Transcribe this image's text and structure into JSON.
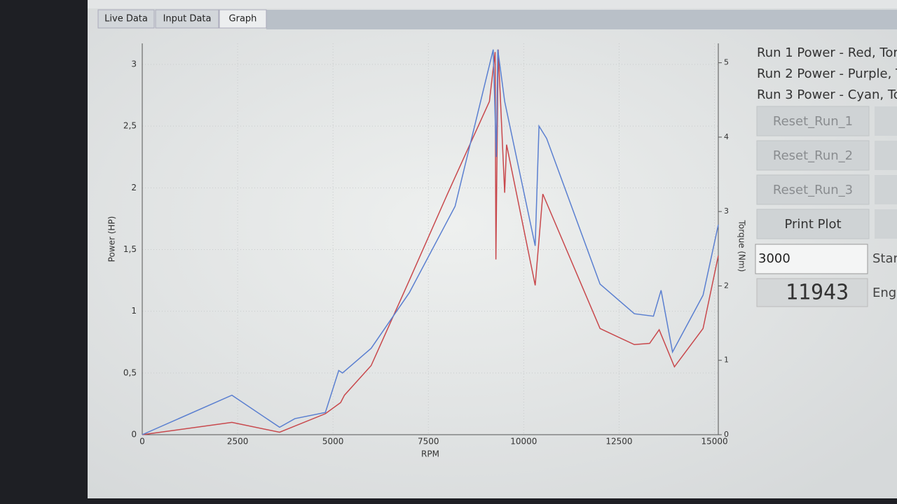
{
  "tabs": [
    "Live Data",
    "Input Data",
    "Graph"
  ],
  "chart_data": {
    "type": "line",
    "x_label": "RPM",
    "y_label": "Power (HP)",
    "y2_label": "Torque (Nm)",
    "xlim": [
      0,
      15100
    ],
    "xticks": [
      0,
      2500,
      5000,
      7500,
      10000,
      12500,
      15000
    ],
    "ylim": [
      0,
      3.17
    ],
    "yticks": [
      0,
      {
        "value": 0.5,
        "label": "0,5"
      },
      1,
      {
        "value": 1.5,
        "label": "1,5"
      },
      2,
      {
        "value": 2.5,
        "label": "2,5"
      },
      3
    ],
    "y2lim": [
      0,
      5.26
    ],
    "y2ticks": [
      0,
      1,
      2,
      3,
      4,
      5
    ],
    "grid": true,
    "series": [
      {
        "color": "#c8484c",
        "x": [
          0,
          2350,
          3600,
          4800,
          5200,
          5300,
          6000,
          7000,
          8000,
          9100,
          9250,
          9270,
          9330,
          9500,
          9550,
          10300,
          10500,
          12000,
          12900,
          13300,
          13550,
          13950,
          14700,
          15100
        ],
        "values": [
          0,
          0.1,
          0.02,
          0.17,
          0.26,
          0.32,
          0.56,
          1.25,
          1.95,
          2.7,
          3.1,
          1.42,
          3.12,
          1.96,
          2.35,
          1.21,
          1.95,
          0.86,
          0.73,
          0.74,
          0.85,
          0.55,
          0.86,
          1.45
        ]
      },
      {
        "color": "#5a7fd0",
        "x": [
          0,
          2350,
          3600,
          4000,
          4800,
          5150,
          5250,
          6000,
          7000,
          8200,
          9200,
          9280,
          9320,
          9500,
          10300,
          10400,
          10600,
          12000,
          12900,
          13400,
          13600,
          13900,
          14700,
          15100
        ],
        "values": [
          0,
          0.32,
          0.06,
          0.13,
          0.18,
          0.52,
          0.5,
          0.7,
          1.15,
          1.85,
          3.12,
          2.25,
          3.12,
          2.7,
          1.53,
          2.5,
          2.4,
          1.22,
          0.98,
          0.96,
          1.17,
          0.67,
          1.13,
          1.7
        ]
      }
    ]
  },
  "side_labels": [
    "Run 1 Power - Red, Tor",
    "Run 2 Power - Purple, T",
    "Run 3 Power - Cyan, To"
  ],
  "buttons": [
    "Reset_Run_1",
    "Reset_Run_2",
    "Reset_Run_3",
    "Print Plot"
  ],
  "spinbox": {
    "value": "3000",
    "label": "Star"
  },
  "lcd": {
    "value": "11943",
    "label": "Engi"
  }
}
